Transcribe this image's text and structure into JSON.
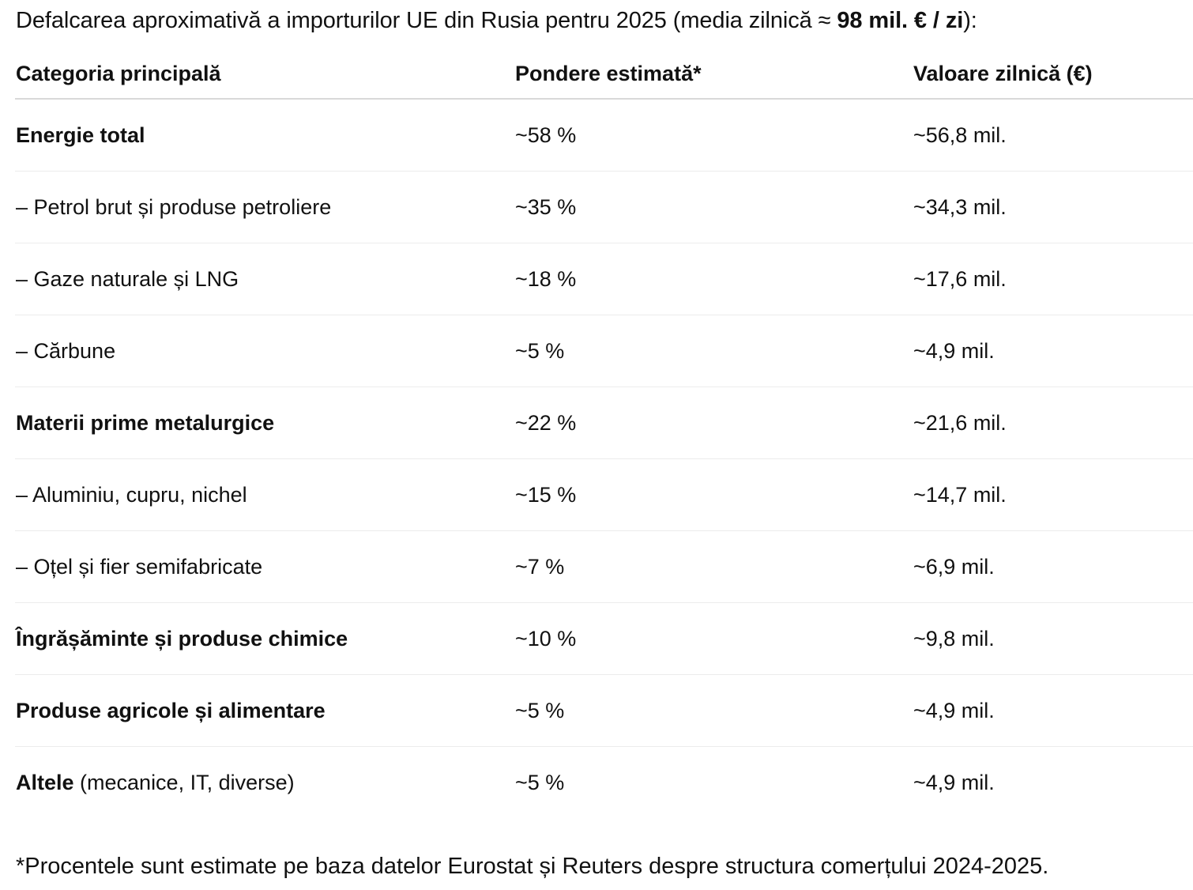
{
  "intro": {
    "text_before": "Defalcarea aproximativă a importurilor UE din Rusia pentru 2025 (media zilnică ≈ ",
    "bold_value": "98 mil. € / zi",
    "text_after": "):"
  },
  "table": {
    "headers": {
      "category": "Categoria principală",
      "share": "Pondere estimată*",
      "value": "Valoare zilnică (€)"
    },
    "rows": [
      {
        "category": "Energie total",
        "note": "",
        "share": "~58 %",
        "value": "~56,8 mil."
      },
      {
        "category": "– Petrol brut și produse petroliere",
        "note": "",
        "share": "~35 %",
        "value": "~34,3 mil."
      },
      {
        "category": "– Gaze naturale și LNG",
        "note": "",
        "share": "~18 %",
        "value": "~17,6 mil."
      },
      {
        "category": "– Cărbune",
        "note": "",
        "share": "~5 %",
        "value": "~4,9 mil."
      },
      {
        "category": "Materii prime metalurgice",
        "note": "",
        "share": "~22 %",
        "value": "~21,6 mil."
      },
      {
        "category": "– Aluminiu, cupru, nichel",
        "note": "",
        "share": "~15 %",
        "value": "~14,7 mil."
      },
      {
        "category": "– Oțel și fier semifabricate",
        "note": "",
        "share": "~7 %",
        "value": "~6,9 mil."
      },
      {
        "category": "Îngrășăminte și produse chimice",
        "note": "",
        "share": "~10 %",
        "value": "~9,8 mil."
      },
      {
        "category": "Produse agricole și alimentare",
        "note": "",
        "share": "~5 %",
        "value": "~4,9 mil."
      },
      {
        "category": "Altele",
        "note": " (mecanice, IT, diverse)",
        "share": "~5 %",
        "value": "~4,9 mil."
      }
    ]
  },
  "footnote": "*Procentele sunt estimate pe baza datelor Eurostat și Reuters despre structura comerțului 2024-2025."
}
